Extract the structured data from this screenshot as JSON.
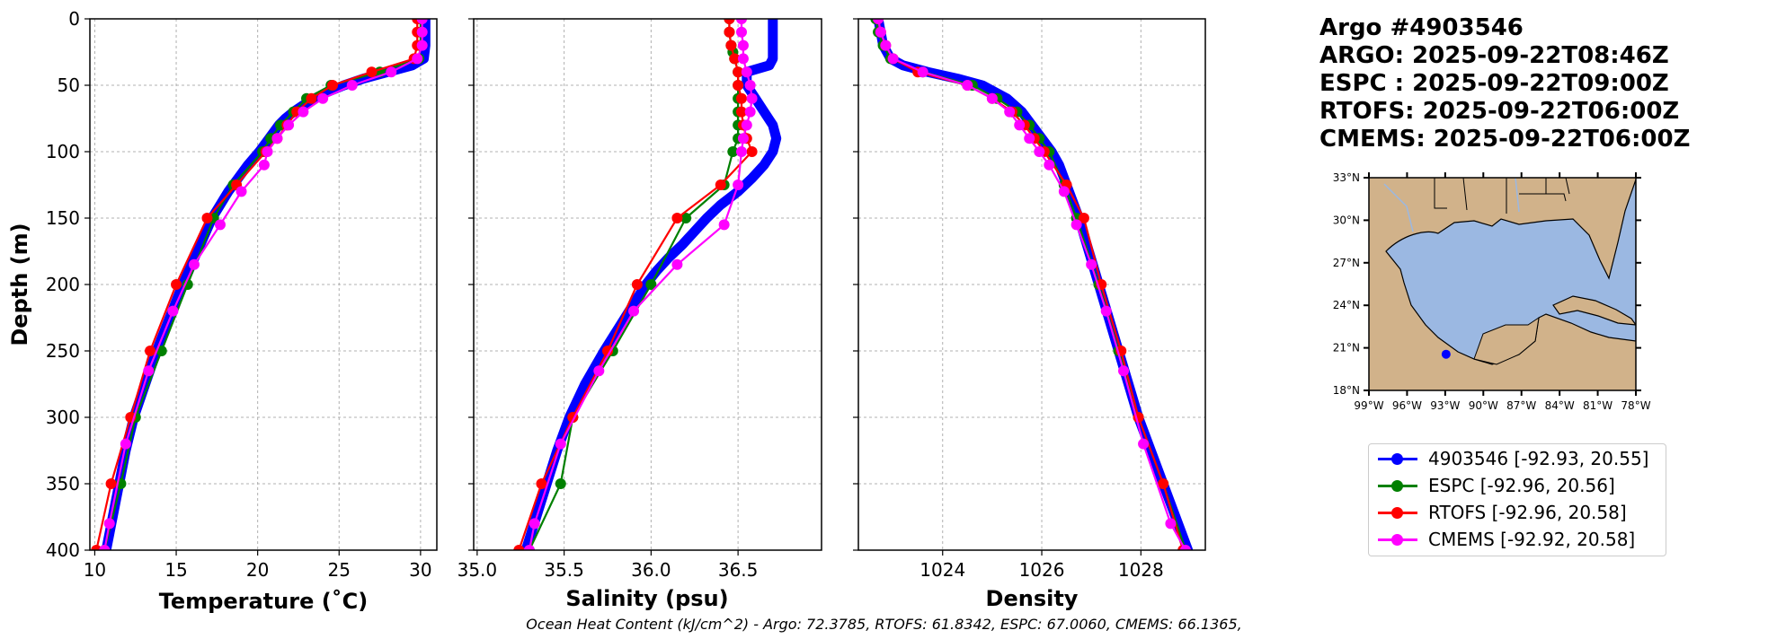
{
  "info": {
    "argo_id": "Argo #4903546",
    "argo_time": "ARGO: 2025-09-22T08:46Z",
    "espc_time": "ESPC : 2025-09-22T09:00Z",
    "rtofs_time": "RTOFS: 2025-09-22T06:00Z",
    "cmems_time": "CMEMS: 2025-09-22T06:00Z"
  },
  "colors": {
    "argo": "#0000ff",
    "espc": "#008000",
    "rtofs": "#ff0000",
    "cmems": "#ff00ff",
    "ocean": "#9bb8e2",
    "land": "#d1b28a",
    "grid": "#b0b0b0"
  },
  "legend": [
    {
      "key": "argo",
      "label": "4903546 [-92.93, 20.55]"
    },
    {
      "key": "espc",
      "label": "ESPC [-92.96, 20.56]"
    },
    {
      "key": "rtofs",
      "label": "RTOFS [-92.96, 20.58]"
    },
    {
      "key": "cmems",
      "label": "CMEMS [-92.92, 20.58]"
    }
  ],
  "ohc_text": "Ocean Heat Content (kJ/cm^2) - Argo: 72.3785,  RTOFS: 61.8342,  ESPC: 67.0060,  CMEMS: 66.1365,",
  "chart_data": [
    {
      "type": "line",
      "xlabel": "Temperature (˚C)",
      "ylabel": "Depth (m)",
      "xlim": [
        9.7,
        31.0
      ],
      "ylim": [
        400,
        0
      ],
      "xticks": [
        10,
        15,
        20,
        25,
        30
      ],
      "xtick_labels": [
        "10",
        "15",
        "20",
        "25",
        "30"
      ],
      "yticks": [
        0,
        50,
        100,
        150,
        200,
        250,
        300,
        350,
        400
      ],
      "ytick_labels": [
        "0",
        "50",
        "100",
        "150",
        "200",
        "250",
        "300",
        "350",
        "400"
      ],
      "grid": true,
      "series": [
        {
          "name": "4903546",
          "key": "argo",
          "depth": [
            0,
            10,
            20,
            30,
            35,
            40,
            45,
            50,
            55,
            60,
            65,
            70,
            75,
            80,
            90,
            100,
            110,
            120,
            130,
            140,
            150,
            175,
            200,
            225,
            250,
            275,
            300,
            325,
            350,
            375,
            400
          ],
          "values": [
            30.3,
            30.3,
            30.3,
            30.2,
            29.5,
            28.0,
            26.5,
            25.3,
            24.3,
            23.5,
            22.8,
            22.2,
            21.7,
            21.3,
            20.7,
            20.1,
            19.4,
            18.8,
            18.2,
            17.7,
            17.2,
            16.3,
            15.4,
            14.6,
            13.8,
            13.1,
            12.4,
            11.9,
            11.5,
            11.1,
            10.7
          ]
        },
        {
          "name": "ESPC",
          "key": "espc",
          "depth": [
            0,
            10,
            20,
            30,
            40,
            50,
            60,
            70,
            80,
            90,
            100,
            125,
            150,
            200,
            250,
            300,
            350,
            400
          ],
          "values": [
            30.0,
            30.0,
            30.0,
            29.9,
            27.5,
            24.5,
            23.0,
            22.2,
            21.4,
            20.8,
            20.3,
            18.5,
            17.3,
            15.7,
            14.1,
            12.5,
            11.6,
            10.6
          ]
        },
        {
          "name": "RTOFS",
          "key": "rtofs",
          "depth": [
            0,
            10,
            20,
            30,
            40,
            50,
            60,
            70,
            80,
            90,
            100,
            125,
            150,
            200,
            250,
            300,
            350,
            400
          ],
          "values": [
            29.8,
            29.8,
            29.8,
            29.6,
            27.0,
            24.6,
            23.3,
            22.4,
            21.8,
            21.2,
            20.5,
            18.7,
            16.9,
            15.0,
            13.4,
            12.2,
            11.0,
            10.1
          ]
        },
        {
          "name": "CMEMS",
          "key": "cmems",
          "depth": [
            0,
            10,
            20,
            30,
            40,
            50,
            60,
            70,
            80,
            90,
            100,
            110,
            130,
            155,
            185,
            220,
            265,
            320,
            380,
            400
          ],
          "values": [
            30.1,
            30.1,
            30.1,
            29.8,
            28.2,
            25.8,
            24.0,
            22.8,
            21.9,
            21.2,
            20.6,
            20.4,
            19.0,
            17.7,
            16.1,
            14.8,
            13.3,
            11.9,
            10.9,
            10.6
          ]
        }
      ]
    },
    {
      "type": "line",
      "xlabel": "Salinity (psu)",
      "ylabel": "",
      "xlim": [
        34.98,
        36.98
      ],
      "ylim": [
        400,
        0
      ],
      "xticks": [
        35.0,
        35.5,
        36.0,
        36.5
      ],
      "xtick_labels": [
        "35.0",
        "35.5",
        "36.0",
        "36.5"
      ],
      "yticks": [
        0,
        50,
        100,
        150,
        200,
        250,
        300,
        350,
        400
      ],
      "grid": true,
      "series": [
        {
          "name": "4903546",
          "key": "argo",
          "depth": [
            0,
            10,
            20,
            30,
            35,
            40,
            50,
            60,
            70,
            80,
            90,
            100,
            110,
            120,
            130,
            140,
            150,
            160,
            170,
            180,
            190,
            200,
            225,
            250,
            275,
            300,
            325,
            350,
            375,
            400
          ],
          "values": [
            36.7,
            36.7,
            36.7,
            36.7,
            36.68,
            36.55,
            36.55,
            36.6,
            36.65,
            36.7,
            36.72,
            36.7,
            36.65,
            36.58,
            36.5,
            36.4,
            36.32,
            36.25,
            36.18,
            36.1,
            36.03,
            35.97,
            35.85,
            35.73,
            35.62,
            35.53,
            35.46,
            35.4,
            35.34,
            35.28
          ]
        },
        {
          "name": "ESPC",
          "key": "espc",
          "depth": [
            0,
            10,
            20,
            25,
            30,
            40,
            50,
            60,
            70,
            80,
            90,
            100,
            125,
            150,
            200,
            250,
            300,
            350,
            400
          ],
          "values": [
            36.45,
            36.45,
            36.46,
            36.47,
            36.48,
            36.5,
            36.5,
            36.5,
            36.5,
            36.5,
            36.5,
            36.47,
            36.42,
            36.2,
            36.0,
            35.78,
            35.55,
            35.48,
            35.3
          ]
        },
        {
          "name": "RTOFS",
          "key": "rtofs",
          "depth": [
            0,
            10,
            20,
            30,
            40,
            50,
            60,
            70,
            80,
            90,
            100,
            125,
            150,
            200,
            250,
            300,
            350,
            400
          ],
          "values": [
            36.45,
            36.45,
            36.46,
            36.48,
            36.5,
            36.5,
            36.52,
            36.52,
            36.53,
            36.55,
            36.58,
            36.4,
            36.15,
            35.92,
            35.75,
            35.55,
            35.37,
            35.24
          ]
        },
        {
          "name": "CMEMS",
          "key": "cmems",
          "depth": [
            0,
            10,
            20,
            30,
            40,
            50,
            60,
            70,
            80,
            90,
            100,
            125,
            155,
            185,
            220,
            265,
            320,
            380,
            400
          ],
          "values": [
            36.52,
            36.52,
            36.53,
            36.53,
            36.55,
            36.57,
            36.58,
            36.57,
            36.55,
            36.53,
            36.52,
            36.5,
            36.42,
            36.15,
            35.9,
            35.7,
            35.48,
            35.33,
            35.3
          ]
        }
      ]
    },
    {
      "type": "line",
      "xlabel": "Density",
      "ylabel": "",
      "xlim": [
        1022.3,
        1029.3
      ],
      "ylim": [
        400,
        0
      ],
      "xticks": [
        1024,
        1026,
        1028
      ],
      "xtick_labels": [
        "1024",
        "1026",
        "1028"
      ],
      "yticks": [
        0,
        50,
        100,
        150,
        200,
        250,
        300,
        350,
        400
      ],
      "grid": true,
      "series": [
        {
          "name": "4903546",
          "key": "argo",
          "depth": [
            0,
            10,
            20,
            30,
            35,
            40,
            45,
            50,
            60,
            70,
            80,
            90,
            100,
            110,
            125,
            150,
            175,
            200,
            225,
            250,
            275,
            300,
            325,
            350,
            375,
            400
          ],
          "values": [
            1022.7,
            1022.75,
            1022.8,
            1022.95,
            1023.2,
            1023.7,
            1024.3,
            1024.8,
            1025.3,
            1025.6,
            1025.8,
            1026.0,
            1026.2,
            1026.35,
            1026.5,
            1026.75,
            1026.95,
            1027.15,
            1027.35,
            1027.55,
            1027.75,
            1027.95,
            1028.2,
            1028.45,
            1028.7,
            1028.95
          ]
        },
        {
          "name": "ESPC",
          "key": "espc",
          "depth": [
            0,
            10,
            20,
            30,
            40,
            50,
            60,
            70,
            80,
            90,
            100,
            125,
            150,
            200,
            250,
            300,
            350,
            400
          ],
          "values": [
            1022.65,
            1022.7,
            1022.8,
            1022.95,
            1023.6,
            1024.6,
            1025.1,
            1025.5,
            1025.75,
            1025.95,
            1026.15,
            1026.45,
            1026.7,
            1027.15,
            1027.55,
            1027.95,
            1028.45,
            1028.9
          ]
        },
        {
          "name": "RTOFS",
          "key": "rtofs",
          "depth": [
            0,
            10,
            20,
            30,
            40,
            50,
            60,
            70,
            80,
            90,
            100,
            125,
            150,
            200,
            250,
            300,
            350,
            400
          ],
          "values": [
            1022.7,
            1022.75,
            1022.85,
            1023.0,
            1023.5,
            1024.5,
            1025.0,
            1025.4,
            1025.65,
            1025.85,
            1026.05,
            1026.5,
            1026.85,
            1027.2,
            1027.6,
            1027.95,
            1028.45,
            1028.85
          ]
        },
        {
          "name": "CMEMS",
          "key": "cmems",
          "depth": [
            0,
            10,
            20,
            30,
            40,
            50,
            60,
            70,
            80,
            90,
            100,
            110,
            130,
            155,
            185,
            220,
            265,
            320,
            380,
            400
          ],
          "values": [
            1022.7,
            1022.75,
            1022.85,
            1023.0,
            1023.6,
            1024.5,
            1025.0,
            1025.35,
            1025.55,
            1025.75,
            1025.95,
            1026.15,
            1026.45,
            1026.7,
            1027.0,
            1027.3,
            1027.65,
            1028.05,
            1028.6,
            1028.9
          ]
        }
      ]
    }
  ],
  "map": {
    "lon_range": [
      -99,
      -78
    ],
    "lat_range": [
      18,
      33
    ],
    "xtick_labels": [
      "99°W",
      "96°W",
      "93°W",
      "90°W",
      "87°W",
      "84°W",
      "81°W",
      "78°W"
    ],
    "ytick_labels": [
      "33°N",
      "30°N",
      "27°N",
      "24°N",
      "21°N",
      "18°N"
    ],
    "float_position": [
      -92.93,
      20.55
    ]
  }
}
